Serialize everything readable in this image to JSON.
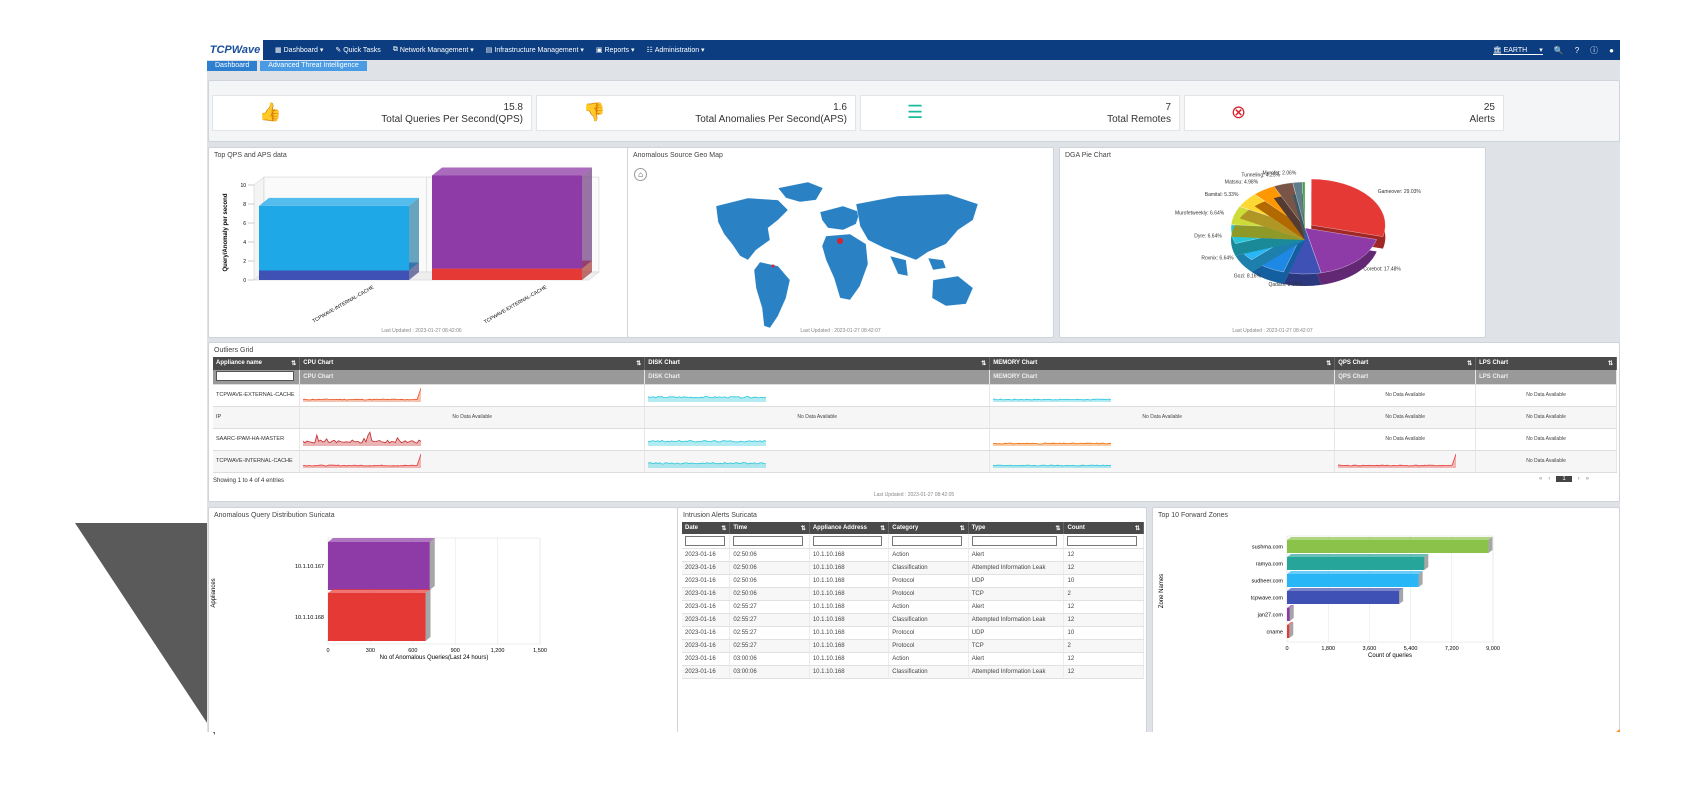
{
  "nav": {
    "logo": "TCPWave",
    "items": [
      {
        "icon": "dashboard-icon",
        "label": "Dashboard ▾"
      },
      {
        "icon": "wand-icon",
        "label": "Quick Tasks"
      },
      {
        "icon": "network-icon",
        "label": "Network Management ▾"
      },
      {
        "icon": "server-icon",
        "label": "Infrastructure Management ▾"
      },
      {
        "icon": "report-icon",
        "label": "Reports ▾"
      },
      {
        "icon": "users-icon",
        "label": "Administration ▾"
      }
    ],
    "org": "EARTH"
  },
  "breadcrumb": [
    "Dashboard",
    "Advanced Threat Intelligence"
  ],
  "stats": [
    {
      "value": "15.8",
      "label": "Total Queries Per Second(QPS)",
      "icon": "thumbs-up-icon",
      "color": "#3cc464"
    },
    {
      "value": "1.6",
      "label": "Total Anomalies Per Second(APS)",
      "icon": "thumbs-down-icon",
      "color": "#d9232e"
    },
    {
      "value": "7",
      "label": "Total Remotes",
      "icon": "server-icon",
      "color": "#1abc9c"
    },
    {
      "value": "25",
      "label": "Alerts",
      "icon": "alert-circle-icon",
      "color": "#d9232e"
    }
  ],
  "qps_panel": {
    "title": "Top QPS and APS data",
    "updated": "Last Updated : 2023-01-27 08:42:06"
  },
  "geo_panel": {
    "title": "Anomalous Source Geo Map",
    "updated": "Last Updated : 2023-01-27 08:42:07"
  },
  "dga_panel": {
    "title": "DGA Pie Chart",
    "updated": "Last Updated : 2023-01-27 08:42:07"
  },
  "chart_data": [
    {
      "type": "bar",
      "title": "Top QPS and APS data",
      "ylabel": "Query/Anomaly per second",
      "categories": [
        "TCPWAVE-INTERNAL-CACHE",
        "TCPWAVE-EXTERNAL-CACHE"
      ],
      "series": [
        {
          "values": [
            1.0,
            1.2
          ],
          "colors": [
            "#3f51b5",
            "#e53935"
          ]
        },
        {
          "values": [
            6.8,
            9.8
          ],
          "colors": [
            "#1ea8e8",
            "#8e3aa7"
          ]
        }
      ],
      "yticks": [
        "0",
        "2",
        "4",
        "6",
        "8",
        "10"
      ],
      "ylim": [
        0,
        10
      ]
    },
    {
      "type": "pie",
      "title": "DGA Pie Chart",
      "slices": [
        {
          "label": "Gameover: 29.03%",
          "value": 29.03,
          "color": "#e53935"
        },
        {
          "label": "Corebot: 17.48%",
          "value": 17.48,
          "color": "#8e3aa7"
        },
        {
          "label": "Qadars: 8.16%",
          "value": 8.16,
          "color": "#3f51b5"
        },
        {
          "label": "Gozi: 8.16%",
          "value": 8.16,
          "color": "#1e88e5"
        },
        {
          "label": "Rovnix: 6.64%",
          "value": 6.64,
          "color": "#29b6f6"
        },
        {
          "label": "Dyre: 6.64%",
          "value": 6.64,
          "color": "#26c6da"
        },
        {
          "label": "Murofetweekly: 6.64%",
          "value": 6.64,
          "color": "#cddc39"
        },
        {
          "label": "Bamital: 5.33%",
          "value": 5.33,
          "color": "#fdd835"
        },
        {
          "label": "Matsnu: 4.98%",
          "value": 4.98,
          "color": "#ff9800"
        },
        {
          "label": "Tunneling: 4.25%",
          "value": 4.25,
          "color": "#795548"
        },
        {
          "label": "Murofet: 2.06%",
          "value": 2.06,
          "color": "#607d8b"
        },
        {
          "label": "",
          "value": 0.61,
          "color": "#43a047"
        }
      ]
    },
    {
      "type": "bar",
      "orientation": "horizontal",
      "title": "Anomalous Query Distribution Suricata",
      "xlabel": "No of Anomalous Queries(Last 24 hours)",
      "ylabel": "Appliances",
      "categories": [
        "10.1.10.167",
        "10.1.10.168"
      ],
      "values": [
        720,
        690
      ],
      "colors": [
        "#8e3aa7",
        "#e53935"
      ],
      "xticks": [
        "0",
        "300",
        "600",
        "900",
        "1,200",
        "1,500"
      ],
      "xlim": [
        0,
        1500
      ]
    },
    {
      "type": "bar",
      "orientation": "horizontal",
      "title": "Top 10 Forward Zones",
      "xlabel": "Count of queries",
      "ylabel": "Zone Names",
      "categories": [
        "sushma.com",
        "ramya.com",
        "sudheer.com",
        "tcpwave.com",
        "jan27.com",
        "cname"
      ],
      "values": [
        8800,
        6000,
        5750,
        4900,
        120,
        100
      ],
      "colors": [
        "#8bc34a",
        "#26a69a",
        "#29b6f6",
        "#3f51b5",
        "#8e3aa7",
        "#e53935"
      ],
      "xticks": [
        "0",
        "1,800",
        "3,600",
        "5,400",
        "7,200",
        "9,000"
      ],
      "xlim": [
        0,
        9000
      ]
    }
  ],
  "outliers": {
    "title": "Outliers Grid",
    "headers": [
      "Appliance name",
      "CPU Chart",
      "DISK Chart",
      "MEMORY Chart",
      "QPS Chart",
      "LPS Chart"
    ],
    "subheaders": [
      "",
      "CPU Chart",
      "DISK Chart",
      "MEMORY Chart",
      "QPS Chart",
      "LPS Chart"
    ],
    "rows": [
      {
        "name": "TCPWAVE-EXTERNAL-CACHE",
        "cells": [
          "spark",
          "spark",
          "spark",
          "No Data Available",
          "No Data Available"
        ]
      },
      {
        "name": "IP",
        "cells": [
          "No Data Available",
          "No Data Available",
          "No Data Available",
          "No Data Available",
          "No Data Available"
        ]
      },
      {
        "name": "SAARC-IPAM-HA-MASTER",
        "cells": [
          "spark",
          "spark",
          "spark",
          "No Data Available",
          "No Data Available"
        ]
      },
      {
        "name": "TCPWAVE-INTERNAL-CACHE",
        "cells": [
          "spark",
          "spark",
          "spark",
          "spark",
          "No Data Available"
        ]
      }
    ],
    "showing": "Showing 1 to 4 of 4 entries",
    "updated": "Last Updated : 2023-01-27 08:42:05",
    "pager": [
      "«",
      "‹",
      "1",
      "›",
      "»"
    ]
  },
  "anom_panel": {
    "title": "Anomalous Query Distribution Suricata"
  },
  "intrusion": {
    "title": "Intrusion Alerts Suricata",
    "headers": [
      "Date",
      "Time",
      "Appliance Address",
      "Category",
      "Type",
      "Count"
    ],
    "rows": [
      [
        "2023-01-16",
        "02:50:06",
        "10.1.10.168",
        "Action",
        "Alert",
        "12"
      ],
      [
        "2023-01-16",
        "02:50:06",
        "10.1.10.168",
        "Classification",
        "Attempted Information Leak",
        "12"
      ],
      [
        "2023-01-16",
        "02:50:06",
        "10.1.10.168",
        "Protocol",
        "UDP",
        "10"
      ],
      [
        "2023-01-16",
        "02:50:06",
        "10.1.10.168",
        "Protocol",
        "TCP",
        "2"
      ],
      [
        "2023-01-16",
        "02:55:27",
        "10.1.10.168",
        "Action",
        "Alert",
        "12"
      ],
      [
        "2023-01-16",
        "02:55:27",
        "10.1.10.168",
        "Classification",
        "Attempted Information Leak",
        "12"
      ],
      [
        "2023-01-16",
        "02:55:27",
        "10.1.10.168",
        "Protocol",
        "UDP",
        "10"
      ],
      [
        "2023-01-16",
        "02:55:27",
        "10.1.10.168",
        "Protocol",
        "TCP",
        "2"
      ],
      [
        "2023-01-16",
        "03:00:06",
        "10.1.10.168",
        "Action",
        "Alert",
        "12"
      ],
      [
        "2023-01-16",
        "03:00:06",
        "10.1.10.168",
        "Classification",
        "Attempted Information Leak",
        "12"
      ]
    ]
  },
  "zones_panel": {
    "title": "Top 10 Forward Zones"
  },
  "fab": {
    "icon": "menu-icon",
    "label": "≡"
  }
}
